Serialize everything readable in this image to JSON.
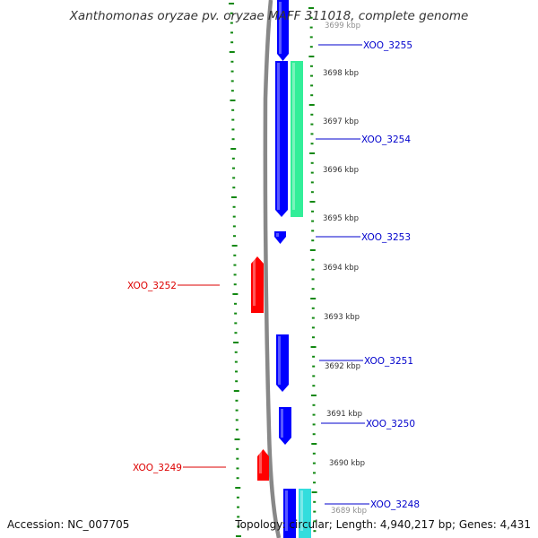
{
  "title": "Xanthomonas oryzae pv. oryzae MAFF 311018, complete genome",
  "footer": {
    "accession": "Accession: NC_007705",
    "summary": "Topology: circular; Length: 4,940,217 bp; Genes: 4,431"
  },
  "colors": {
    "plus_gene": "#0000ff",
    "minus_gene": "#ff0000",
    "rna_green": "#33ee99",
    "rna_cyan": "#33dddd",
    "plus_label": "#0000cc",
    "minus_label": "#dd0000",
    "ticks": "#118811",
    "backbone": "#888888",
    "coordinate_label": "#333333"
  },
  "coordinate_labels": [
    "3699 kbp",
    "3698 kbp",
    "3697 kbp",
    "3696 kbp",
    "3695 kbp",
    "3694 kbp",
    "3693 kbp",
    "3692 kbp",
    "3691 kbp",
    "3690 kbp",
    "3689 kbp"
  ],
  "genes": [
    {
      "id": "XOO_3255",
      "strand": "plus"
    },
    {
      "id": "XOO_3254",
      "strand": "plus"
    },
    {
      "id": "XOO_3253",
      "strand": "plus"
    },
    {
      "id": "XOO_3252",
      "strand": "minus"
    },
    {
      "id": "XOO_3251",
      "strand": "plus"
    },
    {
      "id": "XOO_3250",
      "strand": "plus"
    },
    {
      "id": "XOO_3249",
      "strand": "minus"
    },
    {
      "id": "XOO_3248",
      "strand": "plus"
    }
  ]
}
